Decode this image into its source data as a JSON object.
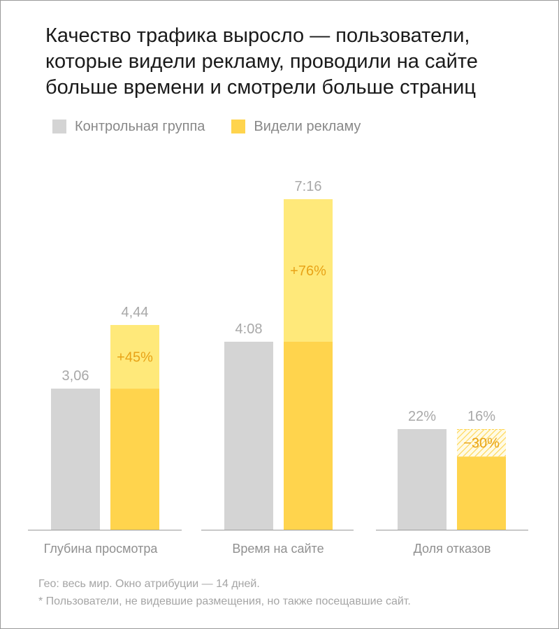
{
  "title_lines": [
    "Качество трафика выросло — пользователи,",
    "которые видели рекламу, проводили на сайте",
    "больше времени и смотрели больше страниц"
  ],
  "footnotes": [
    "Гео: весь мир. Окно атрибуции — 14 дней.",
    "* Пользователи, не видевшие размещения, но также посещавшие сайт."
  ],
  "colors": {
    "control": "#d4d4d4",
    "ad": "#ffd44d",
    "ad_light": "#ffe97a",
    "delta_text": "#e8a317",
    "value_text": "#a8a8a8",
    "axis": "#9a9a9a"
  },
  "chart_data": {
    "type": "bar",
    "legend_position": "top-left",
    "series": [
      {
        "name": "Контрольная группа"
      },
      {
        "name": "Видели рекламу"
      }
    ],
    "groups": [
      {
        "category": "Глубина просмотра",
        "control": {
          "value": 3.06,
          "label": "3,06"
        },
        "ad": {
          "value": 4.44,
          "label": "4,44"
        },
        "delta": {
          "label": "+45%",
          "direction": "increase"
        }
      },
      {
        "category": "Время на сайте",
        "control": {
          "value": 248,
          "label": "4:08"
        },
        "ad": {
          "value": 436,
          "label": "7:16"
        },
        "delta": {
          "label": "+76%",
          "direction": "increase"
        }
      },
      {
        "category": "Доля отказов",
        "control": {
          "value": 22,
          "label": "22%"
        },
        "ad": {
          "value": 16,
          "label": "16%"
        },
        "delta": {
          "label": "−30%",
          "direction": "decrease"
        }
      }
    ]
  }
}
